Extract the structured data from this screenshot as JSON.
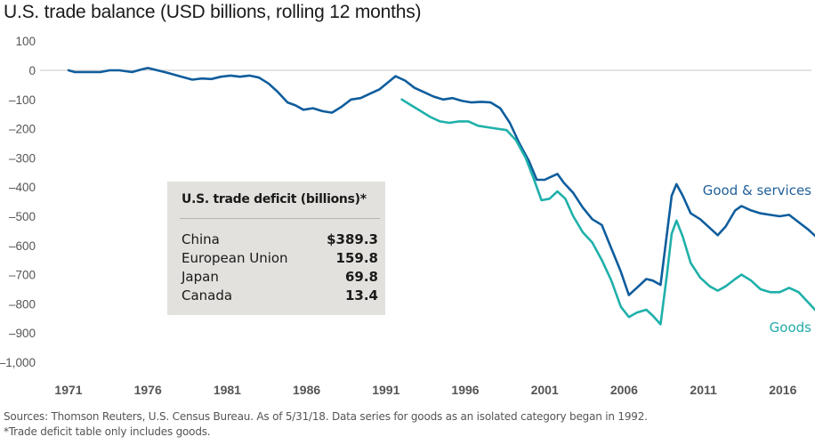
{
  "title": "U.S. trade balance (USD billions, rolling 12 months)",
  "colors": {
    "goods_services": "#0f5d9d",
    "goods": "#1fb0aa",
    "gridline": "#c8c8c8",
    "table_bg": "#e2e1dd"
  },
  "chart_data": {
    "type": "line",
    "title": "U.S. trade balance (USD billions, rolling 12 months)",
    "xlabel": "",
    "ylabel": "",
    "xlim": [
      1971,
      2018.5
    ],
    "ylim": [
      -1000,
      100
    ],
    "y_ticks": [
      100,
      0,
      -100,
      -200,
      -300,
      -400,
      -500,
      -600,
      -700,
      -800,
      -900,
      -1000
    ],
    "y_tick_labels": [
      "100",
      "0",
      "–100",
      "–200",
      "–300",
      "–400",
      "–500",
      "–600",
      "–700",
      "–800",
      "–900",
      "–1,000"
    ],
    "x_ticks": [
      1971,
      1976,
      1981,
      1986,
      1991,
      1996,
      2001,
      2006,
      2011,
      2016
    ],
    "x_tick_labels": [
      "1971",
      "1976",
      "1981",
      "1986",
      "1991",
      "1996",
      "2001",
      "2006",
      "2011",
      "2016"
    ],
    "grid": "zero-line only",
    "series": [
      {
        "name": "Good & services",
        "label_position": "right",
        "x": [
          1971.0,
          1971.4,
          1972.0,
          1973.0,
          1973.6,
          1974.2,
          1975.0,
          1975.6,
          1976.0,
          1976.6,
          1977.2,
          1978.0,
          1978.8,
          1979.4,
          1980.0,
          1980.6,
          1981.2,
          1981.8,
          1982.4,
          1983.0,
          1983.6,
          1984.2,
          1984.8,
          1985.3,
          1985.8,
          1986.4,
          1987.0,
          1987.6,
          1988.2,
          1988.8,
          1989.4,
          1990.0,
          1990.6,
          1991.2,
          1991.6,
          1992.2,
          1992.8,
          1993.4,
          1994.0,
          1994.6,
          1995.2,
          1995.8,
          1996.4,
          1997.0,
          1997.6,
          1998.2,
          1998.8,
          1999.4,
          2000.0,
          2000.5,
          2001.0,
          2001.4,
          2001.8,
          2002.2,
          2002.8,
          2003.4,
          2004.0,
          2004.6,
          2005.2,
          2005.8,
          2006.3,
          2006.8,
          2007.4,
          2007.8,
          2008.3,
          2008.7,
          2009.0,
          2009.3,
          2009.7,
          2010.2,
          2010.8,
          2011.4,
          2011.9,
          2012.4,
          2013.0,
          2013.4,
          2014.0,
          2014.6,
          2015.2,
          2015.8,
          2016.4,
          2017.0,
          2017.6,
          2018.2
        ],
        "values": [
          0,
          -6,
          -6,
          -6,
          0,
          0,
          -6,
          3,
          8,
          0,
          -8,
          -20,
          -32,
          -28,
          -30,
          -22,
          -18,
          -22,
          -18,
          -25,
          -45,
          -75,
          -110,
          -120,
          -135,
          -130,
          -140,
          -145,
          -125,
          -100,
          -95,
          -80,
          -65,
          -38,
          -20,
          -35,
          -60,
          -75,
          -90,
          -100,
          -95,
          -105,
          -110,
          -108,
          -110,
          -130,
          -180,
          -250,
          -310,
          -375,
          -375,
          -365,
          -355,
          -385,
          -420,
          -470,
          -510,
          -530,
          -610,
          -690,
          -770,
          -745,
          -715,
          -720,
          -735,
          -560,
          -430,
          -390,
          -430,
          -490,
          -510,
          -540,
          -565,
          -535,
          -480,
          -465,
          -480,
          -490,
          -495,
          -500,
          -495,
          -520,
          -545,
          -575
        ]
      },
      {
        "name": "Goods",
        "label_position": "right",
        "x": [
          1992.0,
          1992.6,
          1993.2,
          1993.8,
          1994.4,
          1995.0,
          1995.6,
          1996.2,
          1996.8,
          1997.4,
          1998.0,
          1998.6,
          1999.2,
          1999.8,
          2000.3,
          2000.8,
          2001.3,
          2001.8,
          2002.3,
          2002.8,
          2003.4,
          2004.0,
          2004.6,
          2005.2,
          2005.8,
          2006.3,
          2006.8,
          2007.4,
          2007.8,
          2008.3,
          2008.7,
          2009.0,
          2009.3,
          2009.7,
          2010.2,
          2010.8,
          2011.4,
          2011.9,
          2012.4,
          2013.0,
          2013.4,
          2014.0,
          2014.6,
          2015.2,
          2015.8,
          2016.4,
          2017.0,
          2017.6,
          2018.2
        ],
        "values": [
          -100,
          -120,
          -140,
          -160,
          -175,
          -180,
          -175,
          -175,
          -190,
          -195,
          -200,
          -205,
          -240,
          -300,
          -370,
          -445,
          -440,
          -415,
          -440,
          -500,
          -555,
          -590,
          -650,
          -720,
          -810,
          -845,
          -830,
          -820,
          -840,
          -870,
          -700,
          -560,
          -515,
          -570,
          -660,
          -710,
          -740,
          -755,
          -740,
          -715,
          -700,
          -720,
          -750,
          -760,
          -760,
          -745,
          -760,
          -795,
          -830
        ]
      }
    ],
    "annotations": [
      "Good & services",
      "Goods"
    ]
  },
  "table": {
    "title": "U.S. trade deficit (billions)*",
    "rows": [
      {
        "country": "China",
        "value": "$389.3"
      },
      {
        "country": "European Union",
        "value": "159.8"
      },
      {
        "country": "Japan",
        "value": "69.8"
      },
      {
        "country": "Canada",
        "value": "13.4"
      }
    ]
  },
  "footer": {
    "sources": "Sources: Thomson Reuters, U.S. Census Bureau. As of 5/31/18. Data series for goods as an isolated category began in 1992.",
    "note": "*Trade deficit table only includes goods."
  }
}
